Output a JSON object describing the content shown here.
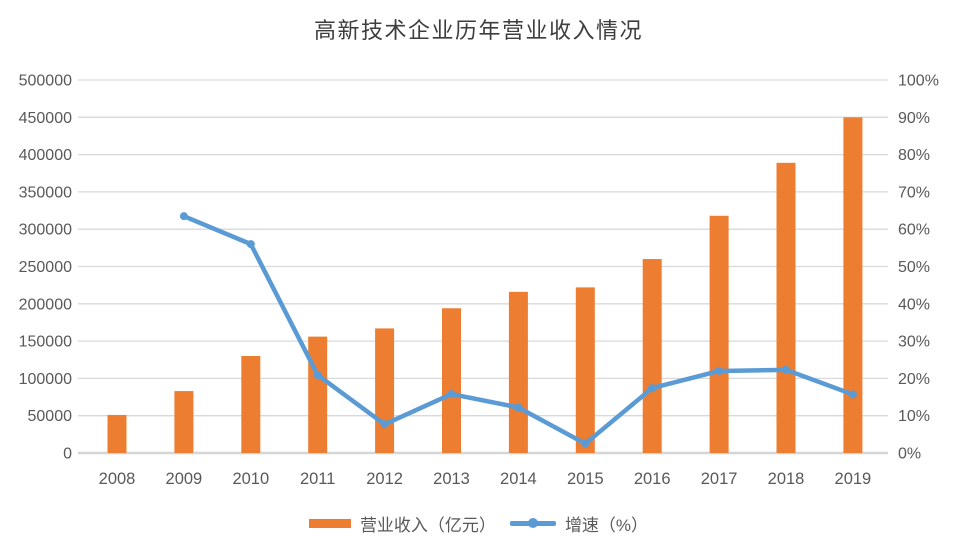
{
  "chart_data": {
    "type": "bar+line",
    "title": "高新技术企业历年营业收入情况",
    "categories": [
      "2008",
      "2009",
      "2010",
      "2011",
      "2012",
      "2013",
      "2014",
      "2015",
      "2016",
      "2017",
      "2018",
      "2019"
    ],
    "series": [
      {
        "name": "营业收入（亿元）",
        "type": "bar",
        "axis": "left",
        "color": "#ED7D31",
        "values": [
          51000,
          83000,
          130000,
          156000,
          167000,
          194000,
          216000,
          222000,
          260000,
          318000,
          389000,
          450000
        ]
      },
      {
        "name": "增速（%）",
        "type": "line",
        "axis": "right",
        "color": "#5B9BD5",
        "values": [
          null,
          63.5,
          56.0,
          20.9,
          7.7,
          15.8,
          12.2,
          2.5,
          17.4,
          22.0,
          22.3,
          15.7
        ]
      }
    ],
    "left_axis": {
      "min": 0,
      "max": 500000,
      "step": 50000,
      "tick_labels": [
        "0",
        "50000",
        "100000",
        "150000",
        "200000",
        "250000",
        "300000",
        "350000",
        "400000",
        "450000",
        "500000"
      ]
    },
    "right_axis": {
      "min": 0,
      "max": 100,
      "step": 10,
      "tick_labels": [
        "0%",
        "10%",
        "20%",
        "30%",
        "40%",
        "50%",
        "60%",
        "70%",
        "80%",
        "90%",
        "100%"
      ]
    },
    "grid": true,
    "legend_position": "bottom",
    "colors": {
      "bar": "#ED7D31",
      "line": "#5B9BD5",
      "gridline": "#D9D9D9",
      "axis_line": "#D6D6D6",
      "axis_text": "#595959",
      "title_text": "#3d3d3d",
      "background": "#ffffff"
    }
  }
}
